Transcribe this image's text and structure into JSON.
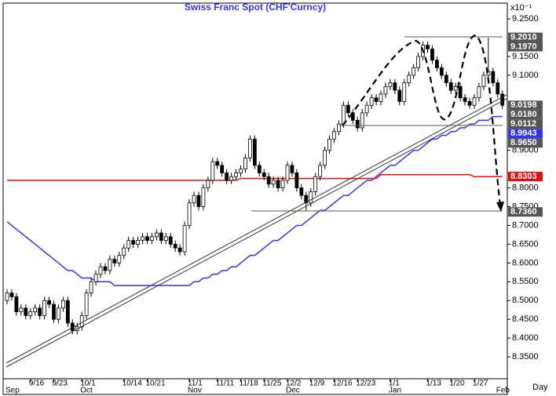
{
  "chart_data": {
    "type": "candlestick",
    "title": "Swiss  Franc  Spot  (CHF'Curncy)",
    "y_axis_note": "x10⁻¹",
    "x_axis_label": "Day",
    "categories": [
      null,
      null,
      null,
      null,
      null,
      "9/16",
      null,
      null,
      null,
      null,
      "9/23",
      null,
      null,
      null,
      null,
      null,
      "10/1",
      null,
      null,
      null,
      null,
      null,
      null,
      null,
      null,
      "10/14",
      null,
      null,
      null,
      null,
      "10/21",
      null,
      null,
      null,
      null,
      null,
      null,
      null,
      null,
      "11/1",
      null,
      null,
      null,
      null,
      null,
      "11/11",
      null,
      null,
      null,
      null,
      "11/18",
      null,
      null,
      null,
      null,
      "11/25",
      null,
      null,
      null,
      null,
      "12/2",
      null,
      null,
      null,
      null,
      "12/9",
      null,
      null,
      null,
      null,
      "12/16",
      null,
      null,
      null,
      null,
      "12/23",
      null,
      null,
      null,
      null,
      null,
      null,
      "1/1",
      null,
      null,
      null,
      null,
      null,
      null,
      null,
      "1/13",
      null,
      null,
      null,
      null,
      "1/20",
      null,
      null,
      null,
      null,
      "1/27",
      null,
      null,
      null,
      null,
      null,
      null
    ],
    "months": [
      "Sep",
      null,
      null,
      null,
      null,
      null,
      null,
      null,
      null,
      null,
      null,
      null,
      null,
      null,
      null,
      null,
      "Oct",
      null,
      null,
      null,
      null,
      null,
      null,
      null,
      null,
      null,
      null,
      null,
      null,
      null,
      null,
      null,
      null,
      null,
      null,
      null,
      null,
      null,
      null,
      "Nov",
      null,
      null,
      null,
      null,
      null,
      null,
      null,
      null,
      null,
      null,
      null,
      null,
      null,
      null,
      null,
      null,
      null,
      null,
      null,
      null,
      "Dec",
      null,
      null,
      null,
      null,
      null,
      null,
      null,
      null,
      null,
      null,
      null,
      null,
      null,
      null,
      null,
      null,
      null,
      null,
      null,
      null,
      null,
      "Jan",
      null,
      null,
      null,
      null,
      null,
      null,
      null,
      null,
      null,
      null,
      null,
      null,
      null,
      null,
      null,
      null,
      null,
      null,
      null,
      null,
      null,
      null,
      "Feb",
      null
    ],
    "open": [
      8.5,
      8.52,
      8.51,
      8.47,
      8.48,
      8.46,
      8.47,
      8.48,
      8.46,
      8.5,
      8.49,
      8.45,
      8.48,
      8.5,
      8.44,
      8.42,
      8.43,
      8.46,
      8.52,
      8.55,
      8.57,
      8.59,
      8.58,
      8.61,
      8.6,
      8.62,
      8.64,
      8.66,
      8.65,
      8.66,
      8.67,
      8.66,
      8.67,
      8.68,
      8.66,
      8.67,
      8.65,
      8.64,
      8.63,
      8.7,
      8.76,
      8.78,
      8.75,
      8.8,
      8.82,
      8.87,
      8.86,
      8.84,
      8.82,
      8.83,
      8.84,
      8.85,
      8.88,
      8.93,
      8.86,
      8.84,
      8.83,
      8.81,
      8.82,
      8.8,
      8.82,
      8.86,
      8.84,
      8.8,
      8.78,
      8.76,
      8.79,
      8.83,
      8.86,
      8.9,
      8.93,
      8.95,
      8.97,
      9.02,
      9.0,
      8.98,
      8.96,
      9.0,
      9.02,
      9.04,
      9.03,
      9.05,
      9.07,
      9.08,
      9.06,
      9.03,
      9.08,
      9.1,
      9.12,
      9.15,
      9.18,
      9.17,
      9.14,
      9.12,
      9.1,
      9.08,
      9.06,
      9.07,
      9.04,
      9.03,
      9.02,
      9.04,
      9.07,
      9.1,
      9.11,
      9.08,
      9.05
    ],
    "high": [
      8.53,
      8.53,
      8.52,
      8.49,
      8.49,
      8.48,
      8.49,
      8.49,
      8.51,
      8.51,
      8.5,
      8.49,
      8.51,
      8.51,
      8.45,
      8.44,
      8.47,
      8.53,
      8.56,
      8.58,
      8.6,
      8.6,
      8.62,
      8.62,
      8.63,
      8.65,
      8.67,
      8.67,
      8.67,
      8.68,
      8.68,
      8.68,
      8.69,
      8.69,
      8.68,
      8.68,
      8.66,
      8.65,
      8.71,
      8.77,
      8.79,
      8.79,
      8.81,
      8.83,
      8.88,
      8.88,
      8.87,
      8.85,
      8.84,
      8.85,
      8.86,
      8.89,
      8.94,
      8.94,
      8.87,
      8.85,
      8.84,
      8.83,
      8.83,
      8.83,
      8.87,
      8.87,
      8.85,
      8.81,
      8.79,
      8.8,
      8.84,
      8.87,
      8.91,
      8.94,
      8.96,
      8.98,
      9.03,
      9.03,
      9.01,
      8.99,
      9.01,
      9.03,
      9.05,
      9.05,
      9.06,
      9.08,
      9.09,
      9.09,
      9.07,
      9.09,
      9.11,
      9.13,
      9.16,
      9.19,
      9.19,
      9.18,
      9.15,
      9.13,
      9.11,
      9.09,
      9.08,
      9.08,
      9.05,
      9.04,
      9.05,
      9.08,
      9.11,
      9.2,
      9.12,
      9.09,
      9.06
    ],
    "low": [
      8.49,
      8.5,
      8.46,
      8.46,
      8.45,
      8.45,
      8.46,
      8.45,
      8.45,
      8.48,
      8.44,
      8.44,
      8.47,
      8.43,
      8.41,
      8.41,
      8.42,
      8.45,
      8.51,
      8.54,
      8.56,
      8.57,
      8.57,
      8.59,
      8.59,
      8.61,
      8.63,
      8.64,
      8.64,
      8.65,
      8.65,
      8.65,
      8.66,
      8.65,
      8.65,
      8.64,
      8.63,
      8.62,
      8.62,
      8.69,
      8.75,
      8.74,
      8.74,
      8.79,
      8.81,
      8.85,
      8.83,
      8.81,
      8.81,
      8.82,
      8.83,
      8.84,
      8.87,
      8.85,
      8.83,
      8.82,
      8.8,
      8.8,
      8.79,
      8.79,
      8.81,
      8.83,
      8.79,
      8.77,
      8.74,
      8.75,
      8.78,
      8.82,
      8.85,
      8.89,
      8.92,
      8.94,
      8.96,
      8.99,
      8.97,
      8.95,
      8.95,
      8.99,
      9.01,
      9.02,
      9.02,
      9.04,
      9.06,
      9.05,
      9.02,
      9.02,
      9.07,
      9.09,
      9.11,
      9.14,
      9.16,
      9.13,
      9.11,
      9.09,
      9.07,
      9.05,
      9.05,
      9.03,
      9.02,
      9.01,
      9.01,
      9.03,
      9.06,
      9.09,
      9.07,
      9.04,
      9.01
    ],
    "close": [
      8.52,
      8.51,
      8.47,
      8.48,
      8.46,
      8.47,
      8.48,
      8.46,
      8.5,
      8.49,
      8.45,
      8.48,
      8.5,
      8.44,
      8.42,
      8.43,
      8.46,
      8.52,
      8.55,
      8.57,
      8.59,
      8.58,
      8.61,
      8.6,
      8.62,
      8.64,
      8.66,
      8.65,
      8.66,
      8.67,
      8.66,
      8.67,
      8.68,
      8.66,
      8.67,
      8.65,
      8.64,
      8.63,
      8.7,
      8.76,
      8.78,
      8.75,
      8.8,
      8.82,
      8.87,
      8.86,
      8.84,
      8.82,
      8.83,
      8.84,
      8.85,
      8.88,
      8.93,
      8.86,
      8.84,
      8.83,
      8.81,
      8.82,
      8.8,
      8.82,
      8.86,
      8.84,
      8.8,
      8.78,
      8.76,
      8.79,
      8.83,
      8.86,
      8.9,
      8.93,
      8.95,
      8.97,
      9.02,
      9.0,
      8.98,
      8.96,
      9.0,
      9.02,
      9.04,
      9.03,
      9.05,
      9.07,
      9.08,
      9.06,
      9.03,
      9.08,
      9.1,
      9.12,
      9.15,
      9.18,
      9.17,
      9.14,
      9.12,
      9.1,
      9.08,
      9.06,
      9.07,
      9.04,
      9.03,
      9.02,
      9.04,
      9.07,
      9.1,
      9.11,
      9.08,
      9.05,
      9.02
    ],
    "up_color": "#ffffff",
    "down_color": "#000000",
    "lines": [
      {
        "color": "#3333ee",
        "values": [
          8.71,
          8.7,
          8.69,
          8.68,
          8.67,
          8.66,
          8.65,
          8.64,
          8.63,
          8.62,
          8.61,
          8.6,
          8.59,
          8.58,
          8.58,
          8.57,
          8.56,
          8.56,
          8.56,
          8.55,
          8.55,
          8.55,
          8.55,
          8.54,
          8.54,
          8.54,
          8.54,
          8.54,
          8.54,
          8.54,
          8.54,
          8.54,
          8.54,
          8.54,
          8.54,
          8.54,
          8.54,
          8.54,
          8.54,
          8.54,
          8.55,
          8.55,
          8.56,
          8.56,
          8.57,
          8.57,
          8.58,
          8.58,
          8.59,
          8.59,
          8.6,
          8.61,
          8.62,
          8.62,
          8.63,
          8.64,
          8.65,
          8.66,
          8.66,
          8.67,
          8.68,
          8.69,
          8.7,
          8.7,
          8.71,
          8.72,
          8.73,
          8.74,
          8.74,
          8.75,
          8.76,
          8.77,
          8.78,
          8.78,
          8.79,
          8.8,
          8.81,
          8.82,
          8.82,
          8.83,
          8.84,
          8.85,
          8.86,
          8.86,
          8.87,
          8.88,
          8.89,
          8.9,
          8.9,
          8.91,
          8.92,
          8.93,
          8.93,
          8.94,
          8.94,
          8.95,
          8.95,
          8.96,
          8.96,
          8.97,
          8.97,
          8.98,
          8.98,
          8.98,
          8.99,
          8.99,
          8.99
        ]
      },
      {
        "color": "#e01010",
        "values": [
          8.82,
          8.82,
          8.82,
          8.82,
          8.82,
          8.82,
          8.82,
          8.82,
          8.82,
          8.82,
          8.82,
          8.82,
          8.82,
          8.82,
          8.82,
          8.82,
          8.82,
          8.82,
          8.82,
          8.82,
          8.82,
          8.82,
          8.82,
          8.82,
          8.82,
          8.82,
          8.82,
          8.82,
          8.82,
          8.82,
          8.82,
          8.82,
          8.82,
          8.82,
          8.82,
          8.82,
          8.82,
          8.82,
          8.82,
          8.82,
          8.82,
          8.82,
          8.82,
          8.82,
          8.82,
          8.82,
          8.82,
          8.82,
          8.82,
          8.82,
          8.825,
          8.825,
          8.825,
          8.825,
          8.825,
          8.825,
          8.825,
          8.825,
          8.825,
          8.825,
          8.825,
          8.825,
          8.825,
          8.825,
          8.825,
          8.825,
          8.825,
          8.825,
          8.825,
          8.825,
          8.825,
          8.825,
          8.825,
          8.825,
          8.825,
          8.825,
          8.825,
          8.825,
          8.825,
          8.825,
          8.835,
          8.835,
          8.835,
          8.835,
          8.835,
          8.835,
          8.835,
          8.835,
          8.835,
          8.835,
          8.835,
          8.835,
          8.835,
          8.835,
          8.835,
          8.835,
          8.835,
          8.835,
          8.835,
          8.835,
          8.83,
          8.83,
          8.83,
          8.83,
          8.83,
          8.83,
          8.83
        ]
      }
    ],
    "ylim": [
      8.298,
      9.269
    ],
    "yticks": [
      {
        "value": 9.25,
        "label": "9.2500"
      },
      {
        "value": 9.15,
        "label": "9.1500"
      },
      {
        "value": 9.1,
        "label": "9.1000"
      },
      {
        "value": 8.9,
        "label": "8.9000"
      },
      {
        "value": 8.8,
        "label": "8.8000"
      },
      {
        "value": 8.75,
        "label": "8.7500"
      },
      {
        "value": 8.7,
        "label": "8.7000"
      },
      {
        "value": 8.65,
        "label": "8.6500"
      },
      {
        "value": 8.6,
        "label": "8.6000"
      },
      {
        "value": 8.55,
        "label": "8.5500"
      },
      {
        "value": 8.5,
        "label": "8.5000"
      },
      {
        "value": 8.45,
        "label": "8.4500"
      },
      {
        "value": 8.4,
        "label": "8.4000"
      },
      {
        "value": 8.35,
        "label": "8.3500"
      }
    ],
    "levels": [
      {
        "value": 9.201,
        "label": "9.2010",
        "color": "#555555"
      },
      {
        "value": 9.197,
        "label": "9.1970",
        "color": "#555555"
      },
      {
        "value": 9.0198,
        "label": "9.0198",
        "color": "#555555"
      },
      {
        "value": 9.018,
        "label": "9.0180",
        "color": "#555555"
      },
      {
        "value": 9.0112,
        "label": "9.0112",
        "color": "#555555"
      },
      {
        "value": 8.9943,
        "label": "8.9943",
        "color": "#3333ee"
      },
      {
        "value": 8.965,
        "label": "8.9650",
        "color": "#555555"
      },
      {
        "value": 8.8303,
        "label": "8.8303",
        "color": "#e01010"
      },
      {
        "value": 8.736,
        "label": "8.7360",
        "color": "#555555"
      }
    ]
  }
}
